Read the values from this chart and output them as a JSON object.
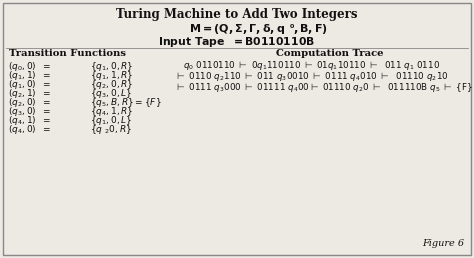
{
  "title": "Turing Machine to Add Two Integers",
  "tf_header": "Transition Functions",
  "ct_header": "Computation Trace",
  "bg_color": "#ede9e3",
  "border_color": "#888888",
  "text_color": "#111111",
  "figure_label": "Figure 6",
  "figwidth": 4.74,
  "figheight": 2.58,
  "dpi": 100
}
